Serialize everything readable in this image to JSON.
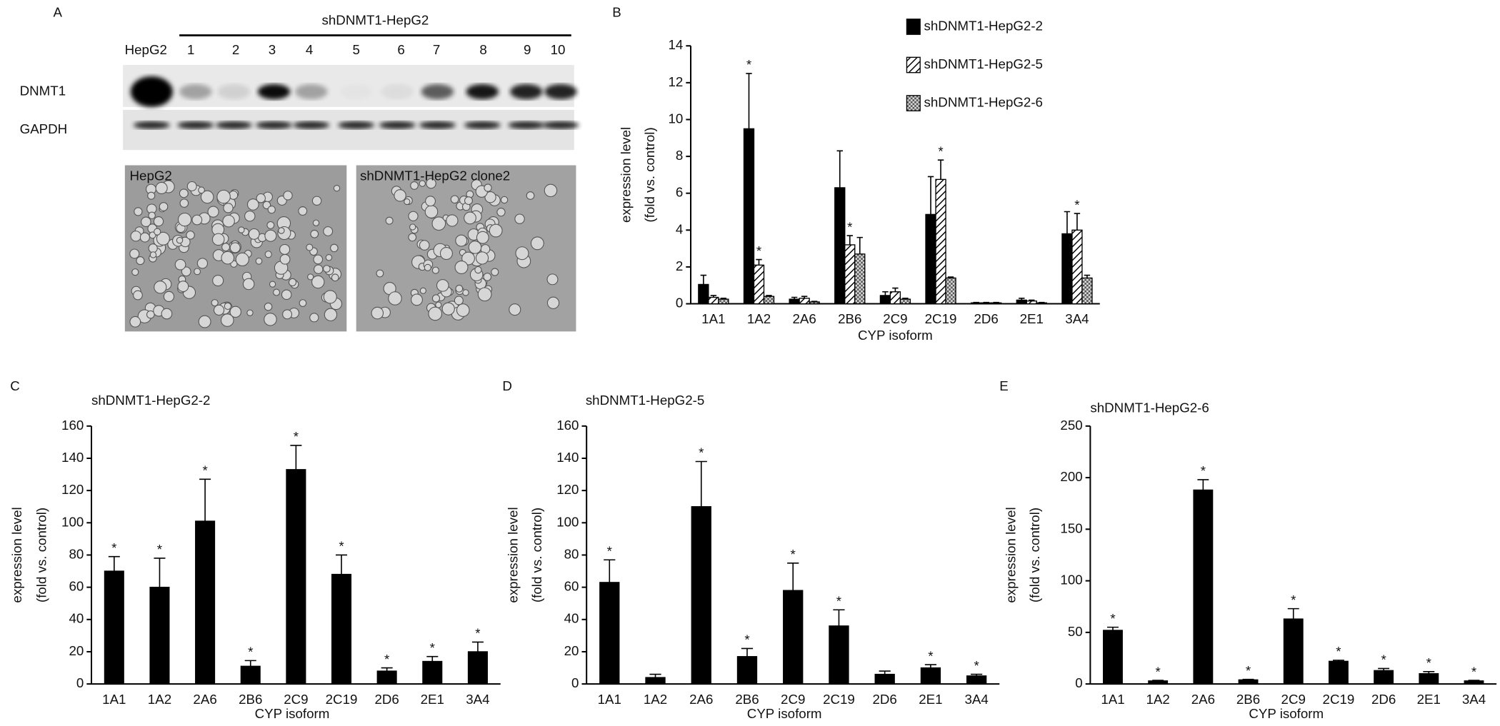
{
  "panel_a": {
    "label": "A",
    "group": "shDNMT1-HepG2",
    "lanes": [
      "HepG2",
      "1",
      "2",
      "3",
      "4",
      "5",
      "6",
      "7",
      "8",
      "9",
      "10"
    ],
    "rows": [
      "DNMT1",
      "GAPDH"
    ],
    "images": [
      "HepG2",
      "shDNMT1-HepG2 clone2"
    ]
  },
  "chart_data": [
    {
      "type": "bar",
      "label": "B",
      "categories": [
        "1A1",
        "1A2",
        "2A6",
        "2B6",
        "2C9",
        "2C19",
        "2D6",
        "2E1",
        "3A4"
      ],
      "series": [
        {
          "name": "shDNMT1-HepG2-2",
          "color": "#000000",
          "pattern": "solid",
          "values": [
            1.05,
            9.5,
            0.25,
            6.3,
            0.45,
            4.85,
            0.05,
            0.2,
            3.8
          ],
          "errors": [
            0.5,
            3.0,
            0.1,
            2.0,
            0.2,
            2.05,
            0.02,
            0.1,
            1.2
          ],
          "marks": [
            null,
            "*",
            null,
            null,
            null,
            null,
            null,
            null,
            null
          ]
        },
        {
          "name": "shDNMT1-HepG2-5",
          "color": "#000000",
          "pattern": "hatch",
          "values": [
            0.35,
            2.1,
            0.3,
            3.2,
            0.65,
            6.75,
            0.05,
            0.15,
            4.0
          ],
          "errors": [
            0.1,
            0.3,
            0.1,
            0.5,
            0.2,
            1.05,
            0.02,
            0.05,
            0.9
          ],
          "marks": [
            null,
            "*",
            null,
            "*",
            null,
            "*",
            null,
            null,
            "*"
          ]
        },
        {
          "name": "shDNMT1-HepG2-6",
          "color": "#000000",
          "pattern": "check",
          "values": [
            0.25,
            0.4,
            0.1,
            2.7,
            0.25,
            1.4,
            0.05,
            0.05,
            1.4
          ],
          "errors": [
            0.05,
            0.05,
            0.03,
            0.9,
            0.05,
            0.05,
            0.02,
            0.02,
            0.15
          ],
          "marks": [
            null,
            null,
            null,
            null,
            null,
            null,
            null,
            null,
            null
          ]
        }
      ],
      "xlabel": "CYP isoform",
      "ylabel": [
        "expression level",
        "(fold vs. control)"
      ],
      "ylim": [
        0,
        14
      ],
      "yticks": [
        0,
        2,
        4,
        6,
        8,
        10,
        12,
        14
      ],
      "legend": "upper right"
    },
    {
      "type": "bar",
      "label": "C",
      "title": "shDNMT1-HepG2-2",
      "categories": [
        "1A1",
        "1A2",
        "2A6",
        "2B6",
        "2C9",
        "2C19",
        "2D6",
        "2E1",
        "3A4"
      ],
      "series": [
        {
          "color": "#000000",
          "pattern": "solid",
          "values": [
            70,
            60,
            101,
            11,
            133,
            68,
            8,
            14,
            20
          ],
          "errors": [
            9,
            18,
            26,
            3.5,
            15,
            12,
            2,
            3,
            6
          ],
          "marks": [
            "*",
            "*",
            "*",
            "*",
            "*",
            "*",
            "*",
            "*",
            "*"
          ]
        }
      ],
      "xlabel": "CYP isoform",
      "ylabel": [
        "expression level",
        "(fold vs. control)"
      ],
      "ylim": [
        0,
        160
      ],
      "yticks": [
        0,
        20,
        40,
        60,
        80,
        100,
        120,
        140,
        160
      ]
    },
    {
      "type": "bar",
      "label": "D",
      "title": "shDNMT1-HepG2-5",
      "categories": [
        "1A1",
        "1A2",
        "2A6",
        "2B6",
        "2C9",
        "2C19",
        "2D6",
        "2E1",
        "3A4"
      ],
      "series": [
        {
          "color": "#000000",
          "pattern": "solid",
          "values": [
            63,
            4,
            110,
            17,
            58,
            36,
            6,
            10,
            5
          ],
          "errors": [
            14,
            2,
            28,
            5,
            17,
            10,
            2,
            2,
            1
          ],
          "marks": [
            "*",
            null,
            "*",
            "*",
            "*",
            "*",
            null,
            "*",
            "*"
          ]
        }
      ],
      "xlabel": "CYP isoform",
      "ylabel": [
        "expression level",
        "(fold vs. control)"
      ],
      "ylim": [
        0,
        160
      ],
      "yticks": [
        0,
        20,
        40,
        60,
        80,
        100,
        120,
        140,
        160
      ]
    },
    {
      "type": "bar",
      "label": "E",
      "title": "shDNMT1-HepG2-6",
      "categories": [
        "1A1",
        "1A2",
        "2A6",
        "2B6",
        "2C9",
        "2C19",
        "2D6",
        "2E1",
        "3A4"
      ],
      "series": [
        {
          "color": "#000000",
          "pattern": "solid",
          "values": [
            52,
            3,
            188,
            4,
            63,
            22,
            13,
            10,
            3
          ],
          "errors": [
            3,
            0.5,
            10,
            0.5,
            10,
            1,
            2,
            2,
            0.5
          ],
          "marks": [
            "*",
            "*",
            "*",
            "*",
            "*",
            "*",
            "*",
            "*",
            "*"
          ]
        }
      ],
      "xlabel": "CYP isoform",
      "ylabel": [
        "expression level",
        "(fold vs. control)"
      ],
      "ylim": [
        0,
        250
      ],
      "yticks": [
        0,
        50,
        100,
        150,
        200,
        250
      ]
    }
  ]
}
